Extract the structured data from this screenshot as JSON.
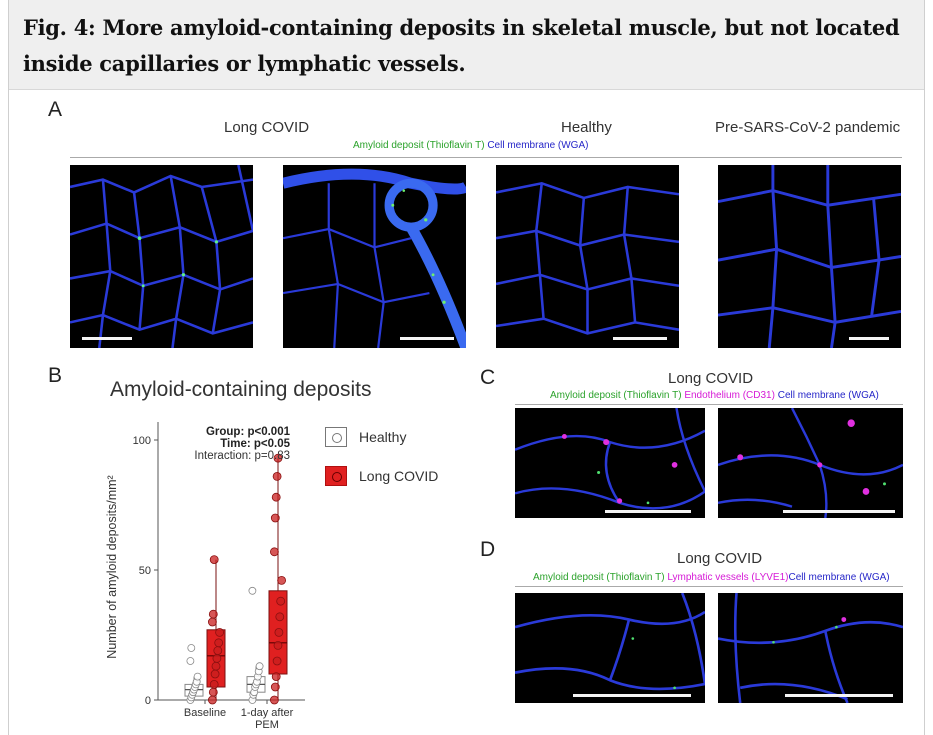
{
  "figure": {
    "title": "Fig. 4: More amyloid-containing deposits in skeletal muscle, but not located inside capillaries or lymphatic vessels."
  },
  "panel_a": {
    "letter": "A",
    "columns": [
      "Long COVID",
      "Healthy",
      "Pre-SARS-CoV-2 pandemic"
    ],
    "stains": {
      "amyloid": "Amyloid deposit (Thioflavin T)",
      "membrane": "Cell membrane (WGA)"
    }
  },
  "panel_b": {
    "letter": "B",
    "title": "Amyloid-containing deposits",
    "stats": {
      "group": "Group: p<0.001",
      "time": "Time: p<0.05",
      "interaction": "Interaction: p=0.83"
    },
    "legend": {
      "healthy": "Healthy",
      "long_covid": "Long COVID"
    },
    "colors": {
      "healthy": "#ffffff",
      "long_covid": "#e02020"
    }
  },
  "panel_c": {
    "letter": "C",
    "title": "Long COVID",
    "stains": {
      "amyloid": "Amyloid deposit (Thioflavin T)",
      "endothelium": "Endothelium (CD31)",
      "membrane": "Cell membrane (WGA)"
    }
  },
  "panel_d": {
    "letter": "D",
    "title": "Long COVID",
    "stains": {
      "amyloid": "Amyloid deposit (Thioflavin T)",
      "lymphatic": "Lymphatic vessels (LYVE1)",
      "membrane": "Cell membrane (WGA)"
    }
  },
  "chart_data": {
    "type": "box",
    "title": "Amyloid-containing deposits",
    "ylabel": "Number of amyloid deposits/mm²",
    "xlabel": "",
    "categories": [
      "Baseline",
      "1-day after PEM"
    ],
    "ylim": [
      0,
      100
    ],
    "yticks": [
      0,
      50,
      100
    ],
    "legend_position": "right",
    "series": [
      {
        "name": "Healthy",
        "boxes": [
          {
            "min": 0,
            "q1": 1.5,
            "median": 4,
            "q3": 6,
            "max": 9,
            "outliers": [
              15,
              20
            ]
          },
          {
            "min": 0,
            "q1": 3,
            "median": 6,
            "q3": 9,
            "max": 13,
            "outliers": [
              42
            ]
          }
        ],
        "points": [
          [
            0,
            1,
            2,
            3,
            4,
            5,
            6,
            7,
            9,
            15,
            20
          ],
          [
            0,
            2,
            3,
            5,
            6,
            7,
            9,
            11,
            13,
            42
          ]
        ]
      },
      {
        "name": "Long COVID",
        "boxes": [
          {
            "min": 0,
            "q1": 5,
            "median": 17,
            "q3": 27,
            "max": 54,
            "outliers": []
          },
          {
            "min": 0,
            "q1": 10,
            "median": 22,
            "q3": 42,
            "max": 93,
            "outliers": []
          }
        ],
        "points": [
          [
            0,
            3,
            6,
            10,
            13,
            16,
            19,
            22,
            26,
            30,
            33,
            54
          ],
          [
            0,
            5,
            9,
            15,
            21,
            26,
            32,
            38,
            46,
            57,
            70,
            78,
            86,
            93
          ]
        ]
      }
    ]
  }
}
